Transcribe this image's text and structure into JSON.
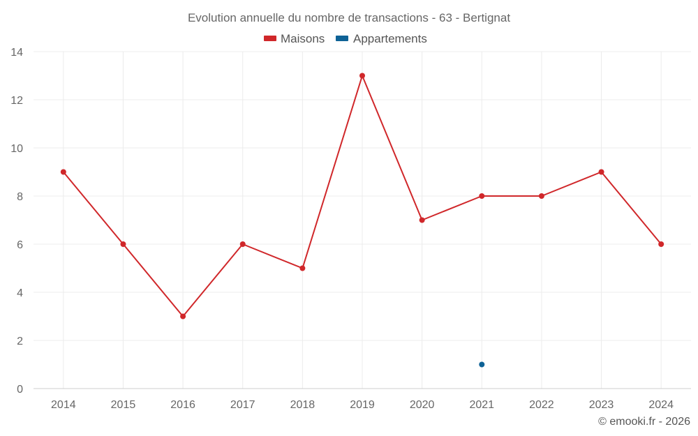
{
  "chart_data": {
    "type": "line",
    "title": "Evolution annuelle du nombre de transactions - 63 - Bertignat",
    "categories": [
      "2014",
      "2015",
      "2016",
      "2017",
      "2018",
      "2019",
      "2020",
      "2021",
      "2022",
      "2023",
      "2024"
    ],
    "series": [
      {
        "name": "Maisons",
        "color": "#d0272a",
        "values": [
          9,
          6,
          3,
          6,
          5,
          13,
          7,
          8,
          8,
          9,
          6
        ]
      },
      {
        "name": "Appartements",
        "color": "#0e6296",
        "values": [
          null,
          null,
          null,
          null,
          null,
          null,
          null,
          1,
          null,
          null,
          null
        ]
      }
    ],
    "ylim": [
      0,
      14
    ],
    "yticks": [
      0,
      2,
      4,
      6,
      8,
      10,
      12,
      14
    ],
    "xlabel": "",
    "ylabel": "",
    "grid": true,
    "legend": "top-center"
  },
  "credit": "© emooki.fr - 2026"
}
